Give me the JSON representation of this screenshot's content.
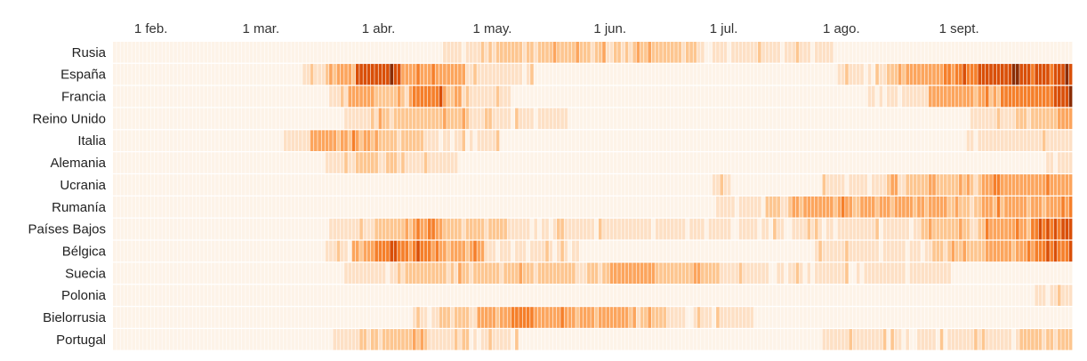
{
  "chart_data": {
    "type": "heatmap",
    "title": "",
    "xlabel": "",
    "ylabel": "",
    "x_ticks": [
      "1 feb.",
      "1 mar.",
      "1 abr.",
      "1 may.",
      "1 jun.",
      "1 jul.",
      "1 ago.",
      "1 sept."
    ],
    "x_range": [
      "2020-01-22",
      "2020-09-30"
    ],
    "value_scale": [
      0,
      5
    ],
    "colors": [
      "#fdf3e8",
      "#fde0c5",
      "#fdc690",
      "#fca55d",
      "#f57f2a",
      "#d94f08",
      "#8a2c04"
    ],
    "rows": [
      {
        "label": "Rusia",
        "segments": [
          [
            "2020-01-22",
            0
          ],
          [
            "2020-04-18",
            1
          ],
          [
            "2020-05-01",
            2
          ],
          [
            "2020-06-02",
            2
          ],
          [
            "2020-06-24",
            1
          ],
          [
            "2020-07-30",
            0
          ]
        ]
      },
      {
        "label": "España",
        "segments": [
          [
            "2020-01-22",
            0
          ],
          [
            "2020-03-12",
            1
          ],
          [
            "2020-03-18",
            3
          ],
          [
            "2020-03-26",
            5
          ],
          [
            "2020-04-07",
            3
          ],
          [
            "2020-04-24",
            1
          ],
          [
            "2020-05-12",
            0
          ],
          [
            "2020-07-31",
            1
          ],
          [
            "2020-08-10",
            2
          ],
          [
            "2020-08-18",
            3
          ],
          [
            "2020-08-27",
            4
          ],
          [
            "2020-09-02",
            5
          ]
        ]
      },
      {
        "label": "Francia",
        "segments": [
          [
            "2020-01-22",
            0
          ],
          [
            "2020-03-19",
            1
          ],
          [
            "2020-03-24",
            3
          ],
          [
            "2020-03-31",
            2
          ],
          [
            "2020-04-09",
            4
          ],
          [
            "2020-04-18",
            2
          ],
          [
            "2020-04-25",
            1
          ],
          [
            "2020-05-06",
            0
          ],
          [
            "2020-08-08",
            1
          ],
          [
            "2020-08-24",
            3
          ],
          [
            "2020-09-12",
            4
          ],
          [
            "2020-09-24",
            5
          ]
        ]
      },
      {
        "label": "Reino Unido",
        "segments": [
          [
            "2020-01-22",
            0
          ],
          [
            "2020-03-23",
            1
          ],
          [
            "2020-03-30",
            2
          ],
          [
            "2020-04-25",
            1
          ],
          [
            "2020-05-21",
            0
          ],
          [
            "2020-09-04",
            1
          ],
          [
            "2020-09-16",
            2
          ],
          [
            "2020-09-27",
            3
          ]
        ]
      },
      {
        "label": "Italia",
        "segments": [
          [
            "2020-01-22",
            0
          ],
          [
            "2020-03-07",
            1
          ],
          [
            "2020-03-14",
            3
          ],
          [
            "2020-03-30",
            2
          ],
          [
            "2020-04-13",
            1
          ],
          [
            "2020-05-03",
            0
          ],
          [
            "2020-09-01",
            1
          ]
        ]
      },
      {
        "label": "Alemania",
        "segments": [
          [
            "2020-01-22",
            0
          ],
          [
            "2020-03-18",
            1
          ],
          [
            "2020-03-26",
            2
          ],
          [
            "2020-04-08",
            1
          ],
          [
            "2020-04-22",
            0
          ],
          [
            "2020-09-23",
            1
          ]
        ]
      },
      {
        "label": "Ucrania",
        "segments": [
          [
            "2020-01-22",
            0
          ],
          [
            "2020-06-28",
            1
          ],
          [
            "2020-07-03",
            0
          ],
          [
            "2020-07-27",
            1
          ],
          [
            "2020-08-13",
            2
          ],
          [
            "2020-09-07",
            3
          ]
        ]
      },
      {
        "label": "Rumanía",
        "segments": [
          [
            "2020-01-22",
            0
          ],
          [
            "2020-06-29",
            1
          ],
          [
            "2020-07-12",
            2
          ],
          [
            "2020-07-22",
            3
          ],
          [
            "2020-08-30",
            2
          ],
          [
            "2020-09-07",
            3
          ]
        ]
      },
      {
        "label": "Países Bajos",
        "segments": [
          [
            "2020-01-22",
            0
          ],
          [
            "2020-03-19",
            1
          ],
          [
            "2020-03-31",
            2
          ],
          [
            "2020-04-10",
            3
          ],
          [
            "2020-04-18",
            2
          ],
          [
            "2020-05-05",
            1
          ],
          [
            "2020-07-31",
            1
          ],
          [
            "2020-08-22",
            2
          ],
          [
            "2020-09-08",
            3
          ],
          [
            "2020-09-20",
            4
          ],
          [
            "2020-09-26",
            5
          ]
        ]
      },
      {
        "label": "Bélgica",
        "segments": [
          [
            "2020-01-22",
            0
          ],
          [
            "2020-03-18",
            1
          ],
          [
            "2020-03-25",
            3
          ],
          [
            "2020-03-31",
            4
          ],
          [
            "2020-04-17",
            3
          ],
          [
            "2020-04-29",
            1
          ],
          [
            "2020-05-24",
            0
          ],
          [
            "2020-07-25",
            1
          ],
          [
            "2020-08-15",
            1
          ],
          [
            "2020-08-25",
            2
          ],
          [
            "2020-09-08",
            3
          ],
          [
            "2020-09-18",
            4
          ]
        ]
      },
      {
        "label": "Suecia",
        "segments": [
          [
            "2020-01-22",
            0
          ],
          [
            "2020-03-23",
            1
          ],
          [
            "2020-04-05",
            2
          ],
          [
            "2020-04-22",
            2
          ],
          [
            "2020-05-18",
            2
          ],
          [
            "2020-06-01",
            3
          ],
          [
            "2020-06-13",
            2
          ],
          [
            "2020-06-30",
            1
          ],
          [
            "2020-07-31",
            1
          ],
          [
            "2020-08-30",
            0
          ]
        ]
      },
      {
        "label": "Polonia",
        "segments": [
          [
            "2020-01-22",
            0
          ],
          [
            "2020-09-21",
            1
          ]
        ]
      },
      {
        "label": "Bielorrusia",
        "segments": [
          [
            "2020-01-22",
            0
          ],
          [
            "2020-04-09",
            1
          ],
          [
            "2020-04-15",
            2
          ],
          [
            "2020-04-27",
            3
          ],
          [
            "2020-05-06",
            4
          ],
          [
            "2020-05-12",
            3
          ],
          [
            "2020-06-06",
            2
          ],
          [
            "2020-06-16",
            1
          ],
          [
            "2020-07-09",
            0
          ]
        ]
      },
      {
        "label": "Portugal",
        "segments": [
          [
            "2020-01-22",
            0
          ],
          [
            "2020-03-20",
            1
          ],
          [
            "2020-03-27",
            2
          ],
          [
            "2020-04-14",
            1
          ],
          [
            "2020-05-08",
            0
          ],
          [
            "2020-07-27",
            1
          ],
          [
            "2020-09-17",
            2
          ]
        ]
      }
    ]
  }
}
